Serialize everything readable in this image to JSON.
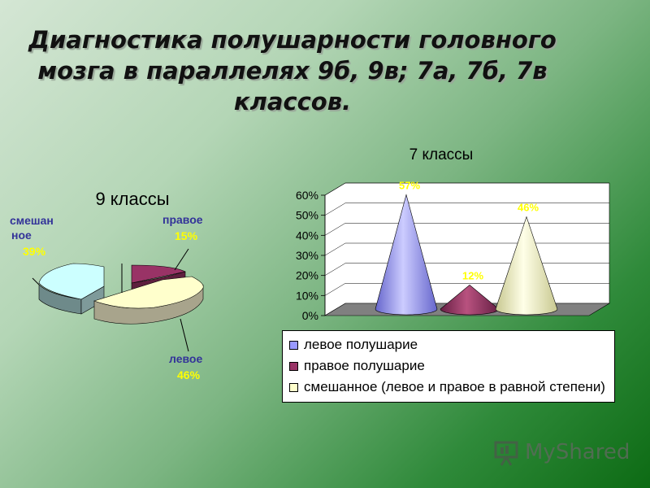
{
  "title": {
    "line1": "Диагностика полушарности головного",
    "line2": "мозга в параллелях  9б, 9в; 7а, 7б, 7в",
    "line3": "классов."
  },
  "chart_data": [
    {
      "type": "pie",
      "title": "9 классы",
      "slices": [
        {
          "label": "правое",
          "value": 15,
          "value_label": "15%",
          "color": "#993366"
        },
        {
          "label": "левое",
          "value": 46,
          "value_label": "46%",
          "color": "#ffffcc"
        },
        {
          "label": "смешан ное",
          "label_line1": "смешан",
          "label_line2": "ное",
          "value": 39,
          "value_label": "39%",
          "color": "#ccffff"
        }
      ]
    },
    {
      "type": "bar",
      "title": "7 классы",
      "categories": [
        "левое полушарие",
        "правое полушарие",
        "смешанное (левое и правое в равной степени)"
      ],
      "values": [
        57,
        12,
        46
      ],
      "value_labels": [
        "57%",
        "12%",
        "46%"
      ],
      "colors": [
        "#9999ff",
        "#993366",
        "#ffffcc"
      ],
      "ylim": [
        0,
        60
      ],
      "yticks": [
        "0%",
        "10%",
        "20%",
        "30%",
        "40%",
        "50%",
        "60%"
      ],
      "grid": true,
      "legend": "bottom",
      "shape": "cone"
    }
  ],
  "legend": {
    "items": [
      {
        "label": "левое полушарие",
        "color": "#9999ff"
      },
      {
        "label": "правое полушарие",
        "color": "#993366"
      },
      {
        "label": "смешанное (левое и правое в равной степени)",
        "color": "#ffffcc"
      }
    ]
  },
  "watermark": {
    "text": "MyShared",
    "icon": "presentation-board-icon"
  }
}
